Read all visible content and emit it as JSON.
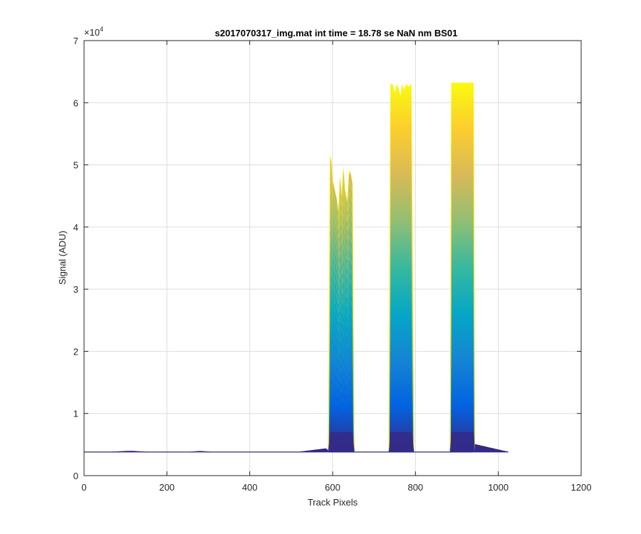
{
  "chart_data": {
    "type": "area",
    "title": "s2017070317_img.mat int time = 18.78 se  NaN nm BS01",
    "xlabel": "Track Pixels",
    "ylabel": "Signal (ADU)",
    "xlim": [
      0,
      1200
    ],
    "ylim": [
      0,
      70000
    ],
    "xticks": [
      0,
      200,
      400,
      600,
      800,
      1000,
      1200
    ],
    "yticks": [
      0,
      10000,
      20000,
      30000,
      40000,
      50000,
      60000,
      70000
    ],
    "xtick_labels": [
      "0",
      "200",
      "400",
      "600",
      "800",
      "1000",
      "1200"
    ],
    "ytick_labels": [
      "0",
      "1",
      "2",
      "3",
      "4",
      "5",
      "6",
      "7"
    ],
    "y_exponent_label": "×10",
    "y_exponent_power": "4",
    "grid": true,
    "colormap": "parula",
    "colormap_stops": [
      "#352a87",
      "#0363e1",
      "#1485d4",
      "#06a7c6",
      "#38b99e",
      "#92bf73",
      "#d9ba56",
      "#fcce2e",
      "#f9fb0e"
    ],
    "baseline": 3800,
    "peaks": [
      {
        "name": "peak 1",
        "profile": [
          [
            590,
            4500
          ],
          [
            594,
            51500
          ],
          [
            597,
            50500
          ],
          [
            600,
            47500
          ],
          [
            605,
            46000
          ],
          [
            610,
            44500
          ],
          [
            614,
            42500
          ],
          [
            618,
            48000
          ],
          [
            622,
            45000
          ],
          [
            626,
            49500
          ],
          [
            630,
            46000
          ],
          [
            635,
            44000
          ],
          [
            640,
            49000
          ],
          [
            644,
            48500
          ],
          [
            648,
            47000
          ],
          [
            652,
            4500
          ]
        ]
      },
      {
        "name": "peak 2",
        "profile": [
          [
            736,
            4200
          ],
          [
            740,
            63000
          ],
          [
            745,
            63000
          ],
          [
            750,
            61500
          ],
          [
            755,
            63000
          ],
          [
            760,
            62000
          ],
          [
            764,
            61000
          ],
          [
            768,
            63000
          ],
          [
            772,
            62000
          ],
          [
            778,
            63000
          ],
          [
            784,
            62500
          ],
          [
            790,
            63000
          ],
          [
            796,
            4300
          ]
        ]
      },
      {
        "name": "peak 3",
        "profile": [
          [
            884,
            4600
          ],
          [
            887,
            63200
          ],
          [
            940,
            63200
          ],
          [
            943,
            5000
          ]
        ]
      }
    ],
    "bands": 26
  }
}
